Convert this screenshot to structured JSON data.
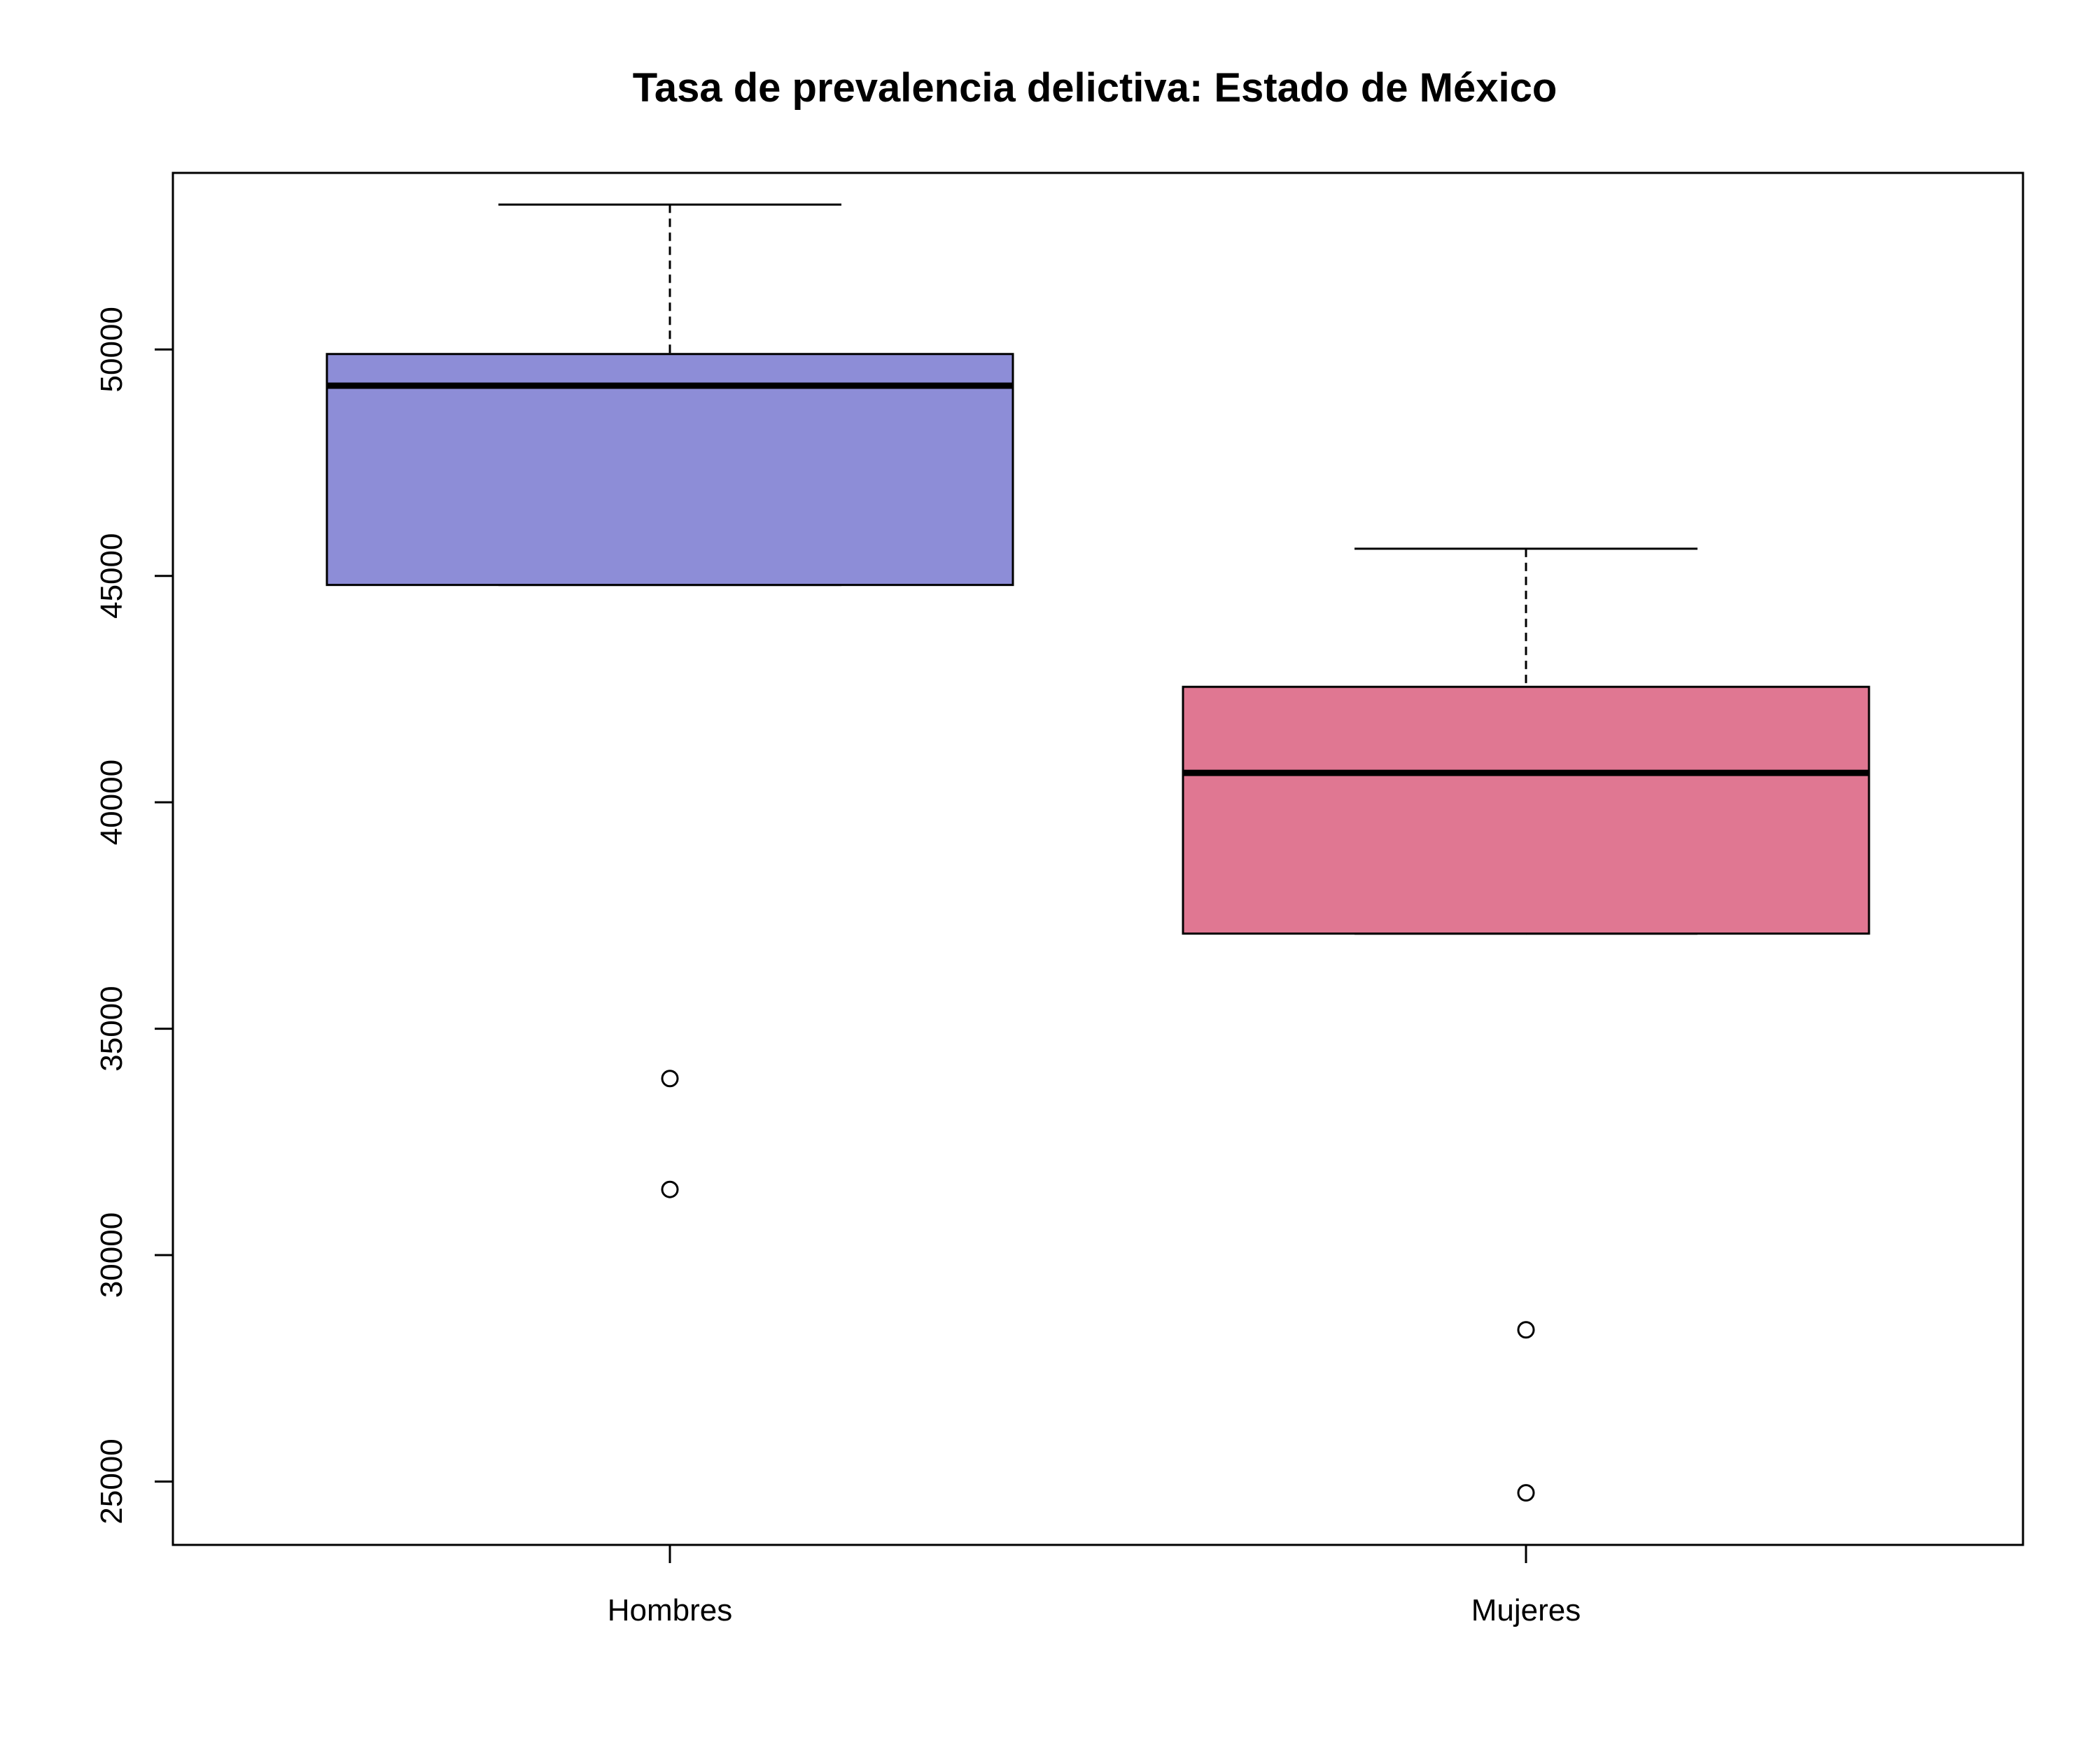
{
  "chart_data": {
    "type": "boxplot",
    "title": "Tasa de prevalencia delictiva: Estado de México",
    "xlabel": "",
    "ylabel": "",
    "ylim": [
      23600,
      53900
    ],
    "yticks": [
      25000,
      30000,
      35000,
      40000,
      45000,
      50000
    ],
    "ytick_labels": [
      "25000",
      "30000",
      "35000",
      "40000",
      "45000",
      "50000"
    ],
    "categories": [
      "Hombres",
      "Mujeres"
    ],
    "series": [
      {
        "name": "Hombres",
        "color": "#8d8dd7",
        "whisker_low": 44800,
        "q1": 44800,
        "median": 49200,
        "q3": 49900,
        "whisker_high": 53200,
        "outliers": [
          33900,
          31450
        ]
      },
      {
        "name": "Mujeres",
        "color": "#e07792",
        "whisker_low": 37100,
        "q1": 37100,
        "median": 40650,
        "q3": 42550,
        "whisker_high": 45600,
        "outliers": [
          28350,
          24750
        ]
      }
    ],
    "grid": false,
    "legend": "none"
  }
}
